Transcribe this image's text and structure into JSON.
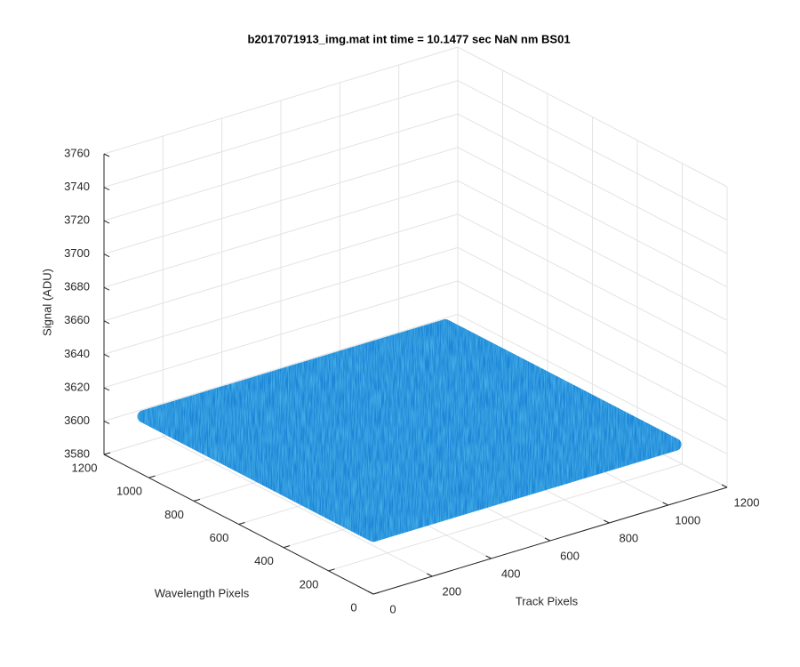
{
  "chart_data": {
    "type": "surface",
    "title": "b2017071913_img.mat int time = 10.1477 sec  NaN nm BS01",
    "xlabel": "Track Pixels",
    "ylabel": "Wavelength Pixels",
    "zlabel": "Signal (ADU)",
    "xlim": [
      0,
      1200
    ],
    "xticks": [
      0,
      200,
      400,
      600,
      800,
      1000,
      1200
    ],
    "ylim": [
      0,
      1200
    ],
    "yticks": [
      0,
      200,
      400,
      600,
      800,
      1000,
      1200
    ],
    "zlim": [
      3580,
      3760
    ],
    "zticks": [
      3580,
      3600,
      3620,
      3640,
      3660,
      3680,
      3700,
      3720,
      3740,
      3760
    ],
    "x": [
      0,
      512,
      1024
    ],
    "y": [
      0,
      512,
      1024
    ],
    "z": [
      [
        3615,
        3615,
        3615
      ],
      [
        3615,
        3615,
        3615
      ],
      [
        3615,
        3615,
        3615
      ]
    ],
    "color": "#1a86d8",
    "grid": true
  }
}
